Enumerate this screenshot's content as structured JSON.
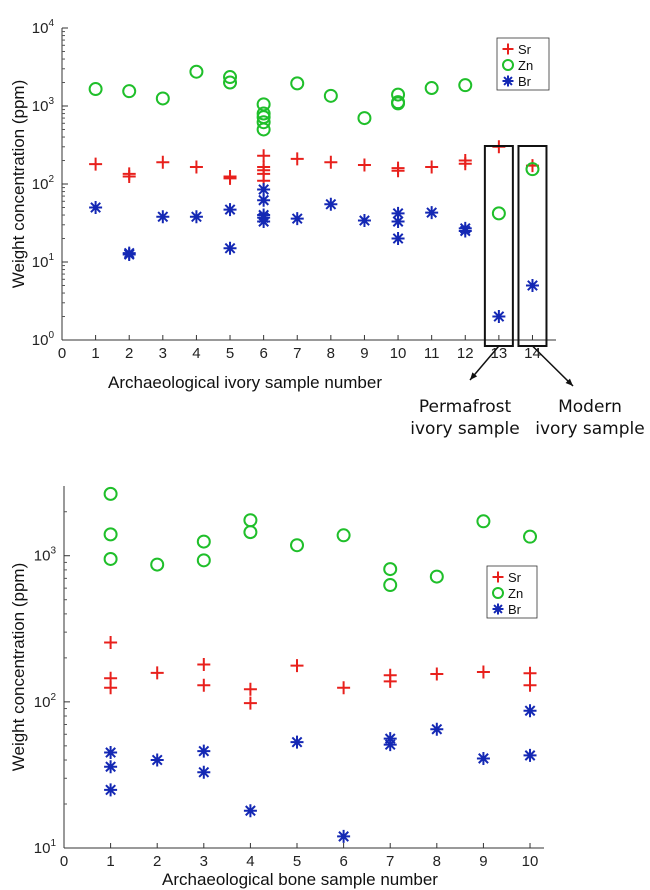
{
  "chart_data": [
    {
      "type": "scatter",
      "xlabel": "Archaeological ivory sample number",
      "ylabel": "Weight concentration (ppm)",
      "x_ticks": [
        "0",
        "1",
        "2",
        "3",
        "4",
        "5",
        "6",
        "7",
        "8",
        "9",
        "10",
        "11",
        "12",
        "13",
        "14"
      ],
      "y_ticks": [
        {
          "base": "10",
          "exp": "0"
        },
        {
          "base": "10",
          "exp": "1"
        },
        {
          "base": "10",
          "exp": "2"
        },
        {
          "base": "10",
          "exp": "3"
        },
        {
          "base": "10",
          "exp": "4"
        }
      ],
      "xlim": [
        0,
        14.7
      ],
      "ylim": [
        1,
        10000
      ],
      "y_scale": "log",
      "legend_position": "top-right",
      "annotations": [
        {
          "text_lines": [
            "Permafrost",
            "ivory sample"
          ],
          "box_x": 13
        },
        {
          "text_lines": [
            "Modern",
            "ivory sample"
          ],
          "box_x": 14
        }
      ],
      "series": [
        {
          "name": "Sr",
          "marker": "plus",
          "color": "#e8201c",
          "points": [
            [
              1,
              180
            ],
            [
              2,
              135
            ],
            [
              2,
              125
            ],
            [
              3,
              190
            ],
            [
              4,
              165
            ],
            [
              5,
              125
            ],
            [
              5,
              118
            ],
            [
              6,
              230
            ],
            [
              6,
              165
            ],
            [
              6,
              150
            ],
            [
              6,
              135
            ],
            [
              6,
              110
            ],
            [
              7,
              210
            ],
            [
              8,
              190
            ],
            [
              9,
              175
            ],
            [
              10,
              160
            ],
            [
              10,
              148
            ],
            [
              11,
              165
            ],
            [
              12,
              200
            ],
            [
              12,
              182
            ],
            [
              13,
              300
            ],
            [
              14,
              172
            ]
          ]
        },
        {
          "name": "Zn",
          "marker": "circle",
          "color": "#1fbf2a",
          "points": [
            [
              1,
              1650
            ],
            [
              2,
              1550
            ],
            [
              3,
              1250
            ],
            [
              4,
              2750
            ],
            [
              5,
              2350
            ],
            [
              5,
              2000
            ],
            [
              6,
              1050
            ],
            [
              6,
              800
            ],
            [
              6,
              720
            ],
            [
              6,
              620
            ],
            [
              6,
              500
            ],
            [
              7,
              1950
            ],
            [
              8,
              1350
            ],
            [
              9,
              700
            ],
            [
              10,
              1400
            ],
            [
              10,
              1120
            ],
            [
              10,
              1080
            ],
            [
              11,
              1700
            ],
            [
              12,
              1850
            ],
            [
              13,
              42
            ],
            [
              14,
              155
            ]
          ]
        },
        {
          "name": "Br",
          "marker": "star",
          "color": "#1428b4",
          "points": [
            [
              1,
              50
            ],
            [
              2,
              13
            ],
            [
              2,
              12.5
            ],
            [
              3,
              38
            ],
            [
              4,
              38
            ],
            [
              5,
              47
            ],
            [
              5,
              15
            ],
            [
              6,
              85
            ],
            [
              6,
              62
            ],
            [
              6,
              40
            ],
            [
              6,
              37
            ],
            [
              6,
              33
            ],
            [
              7,
              36
            ],
            [
              8,
              55
            ],
            [
              9,
              34
            ],
            [
              10,
              42
            ],
            [
              10,
              33
            ],
            [
              10,
              20
            ],
            [
              11,
              43
            ],
            [
              12,
              27
            ],
            [
              12,
              25
            ],
            [
              13,
              2
            ],
            [
              14,
              5
            ]
          ]
        }
      ]
    },
    {
      "type": "scatter",
      "xlabel": "Archaeological bone sample number",
      "ylabel": "Weight concentration (ppm)",
      "x_ticks": [
        "0",
        "1",
        "2",
        "3",
        "4",
        "5",
        "6",
        "7",
        "8",
        "9",
        "10"
      ],
      "y_ticks": [
        {
          "base": "10",
          "exp": "1"
        },
        {
          "base": "10",
          "exp": "2"
        },
        {
          "base": "10",
          "exp": "3"
        }
      ],
      "xlim": [
        0,
        10.3
      ],
      "ylim": [
        10,
        3000
      ],
      "y_scale": "log",
      "legend_position": "right",
      "series": [
        {
          "name": "Sr",
          "marker": "plus",
          "color": "#e8201c",
          "points": [
            [
              1,
              255
            ],
            [
              1,
              145
            ],
            [
              1,
              125
            ],
            [
              2,
              158
            ],
            [
              3,
              180
            ],
            [
              3,
              130
            ],
            [
              4,
              122
            ],
            [
              4,
              98
            ],
            [
              5,
              177
            ],
            [
              6,
              125
            ],
            [
              7,
              152
            ],
            [
              7,
              138
            ],
            [
              8,
              155
            ],
            [
              9,
              160
            ],
            [
              10,
              157
            ],
            [
              10,
              130
            ]
          ]
        },
        {
          "name": "Zn",
          "marker": "circle",
          "color": "#1fbf2a",
          "points": [
            [
              1,
              2650
            ],
            [
              1,
              1400
            ],
            [
              1,
              950
            ],
            [
              2,
              870
            ],
            [
              3,
              1250
            ],
            [
              3,
              930
            ],
            [
              4,
              1750
            ],
            [
              4,
              1450
            ],
            [
              5,
              1180
            ],
            [
              6,
              1380
            ],
            [
              7,
              810
            ],
            [
              7,
              630
            ],
            [
              8,
              720
            ],
            [
              9,
              1720
            ],
            [
              10,
              1350
            ]
          ]
        },
        {
          "name": "Br",
          "marker": "star",
          "color": "#1428b4",
          "points": [
            [
              1,
              45
            ],
            [
              1,
              36
            ],
            [
              1,
              25
            ],
            [
              2,
              40
            ],
            [
              3,
              46
            ],
            [
              3,
              33
            ],
            [
              4,
              18
            ],
            [
              5,
              53
            ],
            [
              6,
              12
            ],
            [
              7,
              56
            ],
            [
              7,
              51
            ],
            [
              8,
              65
            ],
            [
              9,
              41
            ],
            [
              10,
              87
            ],
            [
              10,
              43
            ]
          ]
        }
      ]
    }
  ]
}
